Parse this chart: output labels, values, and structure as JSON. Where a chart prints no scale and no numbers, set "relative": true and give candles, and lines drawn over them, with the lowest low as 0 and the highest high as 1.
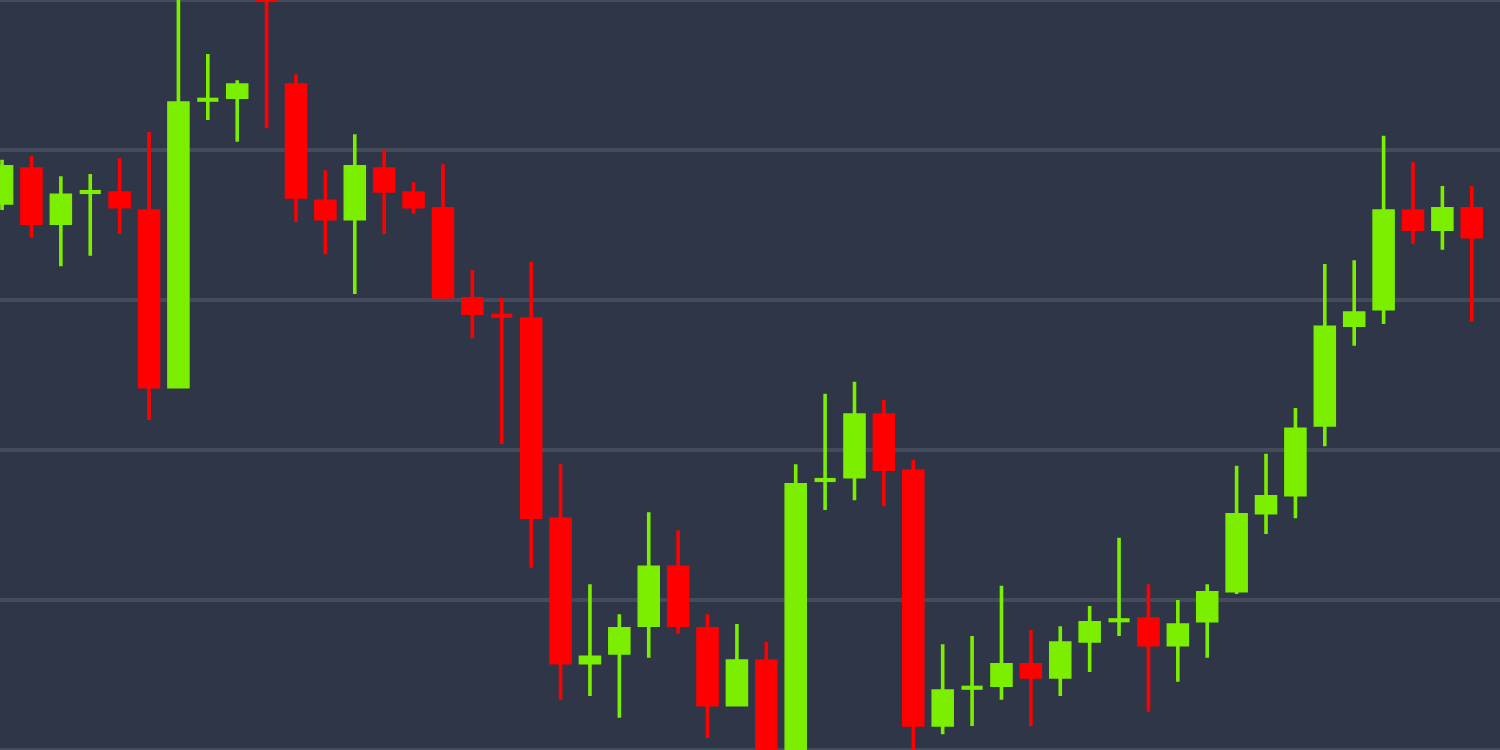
{
  "chart_data": {
    "type": "candlestick",
    "relative": true,
    "grid": "y",
    "categories": [
      null,
      null,
      null,
      null,
      null,
      null,
      null,
      null,
      null,
      null,
      null,
      null,
      null,
      null,
      null,
      null,
      null,
      null,
      null,
      null,
      null,
      null,
      null,
      null,
      null,
      null,
      null,
      null,
      null,
      null,
      null,
      null,
      null,
      null,
      null,
      null,
      null,
      null,
      null,
      null,
      null,
      null,
      null,
      null,
      null,
      null,
      null,
      null,
      null,
      null,
      null
    ],
    "ohlc": [
      [
        0.728,
        0.787,
        0.72,
        0.779
      ],
      [
        0.776,
        0.792,
        0.683,
        0.701
      ],
      [
        0.701,
        0.765,
        0.645,
        0.741
      ],
      [
        0.744,
        0.768,
        0.659,
        0.744
      ],
      [
        0.744,
        0.789,
        0.688,
        0.723
      ],
      [
        0.72,
        0.824,
        0.44,
        0.483
      ],
      [
        0.483,
        1,
        0.483,
        0.864
      ],
      [
        0.867,
        0.928,
        0.84,
        0.867
      ],
      [
        0.869,
        0.893,
        0.811,
        0.888
      ],
      [
        1,
        1,
        0.829,
        1
      ],
      [
        0.888,
        0.901,
        0.704,
        0.736
      ],
      [
        0.733,
        0.773,
        0.661,
        0.707
      ],
      [
        0.707,
        0.821,
        0.608,
        0.779
      ],
      [
        0.776,
        0.8,
        0.688,
        0.744
      ],
      [
        0.744,
        0.757,
        0.715,
        0.723
      ],
      [
        0.723,
        0.781,
        0.6,
        0.603
      ],
      [
        0.603,
        0.64,
        0.549,
        0.581
      ],
      [
        0.579,
        0.603,
        0.408,
        0.579
      ],
      [
        0.576,
        0.651,
        0.243,
        0.309
      ],
      [
        0.309,
        0.381,
        0.067,
        0.115
      ],
      [
        0.115,
        0.221,
        0.072,
        0.125
      ],
      [
        0.128,
        0.181,
        0.043,
        0.163
      ],
      [
        0.165,
        0.317,
        0.123,
        0.245
      ],
      [
        0.245,
        0.293,
        0.155,
        0.165
      ],
      [
        0.163,
        0.181,
        0.016,
        0.059
      ],
      [
        0.059,
        0.168,
        0.059,
        0.12
      ],
      [
        0.12,
        0.144,
        0,
        0
      ],
      [
        0,
        0.381,
        0,
        0.355
      ],
      [
        0.36,
        0.475,
        0.32,
        0.36
      ],
      [
        0.363,
        0.491,
        0.333,
        0.448
      ],
      [
        0.448,
        0.467,
        0.325,
        0.373
      ],
      [
        0.373,
        0.387,
        0,
        0.032
      ],
      [
        0.032,
        0.141,
        0.021,
        0.08
      ],
      [
        0.083,
        0.152,
        0.032,
        0.083
      ],
      [
        0.085,
        0.219,
        0.067,
        0.115
      ],
      [
        0.115,
        0.16,
        0.032,
        0.096
      ],
      [
        0.096,
        0.165,
        0.072,
        0.144
      ],
      [
        0.144,
        0.192,
        0.104,
        0.171
      ],
      [
        0.173,
        0.283,
        0.152,
        0.173
      ],
      [
        0.176,
        0.221,
        0.051,
        0.139
      ],
      [
        0.139,
        0.2,
        0.091,
        0.168
      ],
      [
        0.171,
        0.221,
        0.123,
        0.211
      ],
      [
        0.211,
        0.379,
        0.208,
        0.315
      ],
      [
        0.315,
        0.395,
        0.288,
        0.339
      ],
      [
        0.339,
        0.456,
        0.309,
        0.429
      ],
      [
        0.432,
        0.648,
        0.405,
        0.565
      ],
      [
        0.565,
        0.653,
        0.539,
        0.584
      ],
      [
        0.587,
        0.819,
        0.568,
        0.72
      ],
      [
        0.72,
        0.784,
        0.675,
        0.693
      ],
      [
        0.693,
        0.752,
        0.667,
        0.723
      ],
      [
        0.723,
        0.752,
        0.571,
        0.683
      ]
    ],
    "colors": [
      "#7cee00",
      "#ff0000",
      "#7cee00",
      "#7cee00",
      "#ff0000",
      "#ff0000",
      "#7cee00",
      "#7cee00",
      "#7cee00",
      "#ff0000",
      "#ff0000",
      "#ff0000",
      "#7cee00",
      "#ff0000",
      "#ff0000",
      "#ff0000",
      "#ff0000",
      "#ff0000",
      "#ff0000",
      "#ff0000",
      "#7cee00",
      "#7cee00",
      "#7cee00",
      "#ff0000",
      "#ff0000",
      "#7cee00",
      "#ff0000",
      "#7cee00",
      "#7cee00",
      "#7cee00",
      "#ff0000",
      "#ff0000",
      "#7cee00",
      "#7cee00",
      "#7cee00",
      "#ff0000",
      "#7cee00",
      "#7cee00",
      "#7cee00",
      "#ff0000",
      "#7cee00",
      "#7cee00",
      "#7cee00",
      "#7cee00",
      "#7cee00",
      "#7cee00",
      "#7cee00",
      "#7cee00",
      "#ff0000",
      "#7cee00",
      "#ff0000"
    ]
  }
}
